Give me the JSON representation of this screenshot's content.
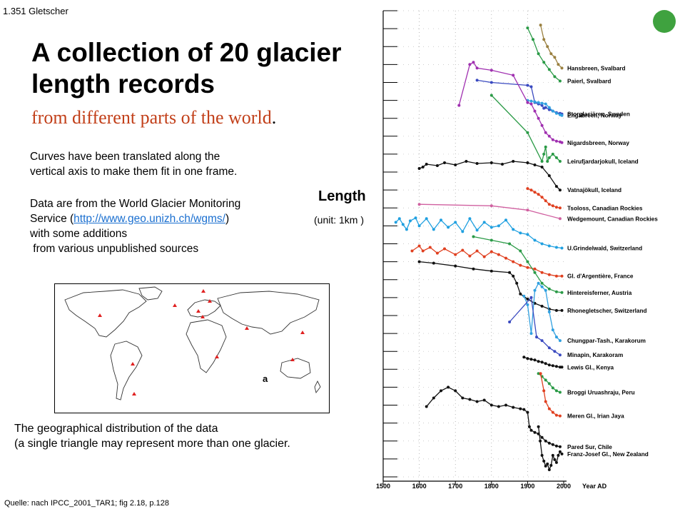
{
  "slide": {
    "id": "1.351  Gletscher",
    "title": "A collection of 20 glacier length records",
    "subtitle": "from different parts of the world",
    "subtitle_end": ".",
    "notes": {
      "line1": "Curves have been translated along the",
      "line2": "vertical axis to make them fit in one frame.",
      "line3": "Data are from the World Glacier Monitoring",
      "line4_pre": "Service (",
      "link": "http://www.geo.unizh.ch/wgms/",
      "line4_post": ")",
      "line5": "with some additions",
      "line6": " from various unpublished sources"
    },
    "length_label": "Length",
    "unit_label": "(unit: 1km )",
    "map_label": "a",
    "caption": {
      "line1": "The geographical distribution of the data",
      "line2": "(a single triangle may represent more than one glacier."
    },
    "source": "Quelle: nach  IPCC_2001_TAR1;  fig 2.18, p.128",
    "accent_color": "#3fa23f"
  },
  "chart_data": {
    "type": "line",
    "xlim": [
      1500,
      2000
    ],
    "xticks": [
      "1500",
      "1600",
      "1700",
      "1800",
      "1900",
      "2000"
    ],
    "xlabel": "Year AD",
    "series": [
      {
        "name": "Hansbreen, Svalbard",
        "color": "#9a8040",
        "x": [
          1936,
          1945,
          1955,
          1965,
          1975,
          1985,
          1995
        ],
        "y": [
          2.0,
          4.0,
          5.0,
          6.0,
          6.5,
          7.5,
          8.0
        ]
      },
      {
        "name": "Paierl, Svalbard",
        "color": "#2a9a46",
        "x": [
          1900,
          1915,
          1930,
          1945,
          1960,
          1975,
          1990
        ],
        "y": [
          2.4,
          4.0,
          6.0,
          7.2,
          8.2,
          9.2,
          9.8
        ]
      },
      {
        "name": "Storglaciären, Sweden",
        "color": "#3a4ac0",
        "x": [
          1760,
          1800,
          1900,
          1910,
          1920,
          1930,
          1940,
          1945,
          1950,
          1960,
          1970,
          1980,
          1990,
          1995
        ],
        "y": [
          9.7,
          10.0,
          10.4,
          10.6,
          12.8,
          13.0,
          13.2,
          13.6,
          13.5,
          13.8,
          14.0,
          14.2,
          14.3,
          14.4
        ]
      },
      {
        "name": "Engabreen, Norway",
        "color": "#30a0e0",
        "x": [
          1900,
          1910,
          1920,
          1930,
          1940,
          1950,
          1960,
          1970,
          1980,
          1990,
          1995
        ],
        "y": [
          12.5,
          12.6,
          12.7,
          12.8,
          12.9,
          13.0,
          13.5,
          14.0,
          14.3,
          14.5,
          14.6
        ]
      },
      {
        "name": "Nigardsbreen, Norway",
        "color": "#a030b0",
        "x": [
          1710,
          1740,
          1750,
          1760,
          1800,
          1860,
          1900,
          1910,
          1920,
          1930,
          1940,
          1950,
          1960,
          1970,
          1980,
          1990,
          1995
        ],
        "y": [
          13.2,
          7.5,
          7.2,
          8.0,
          8.3,
          9.0,
          12.8,
          13.0,
          14.0,
          15.0,
          16.0,
          17.0,
          17.5,
          18.0,
          18.2,
          18.3,
          18.4
        ]
      },
      {
        "name": "Leirufjardarjokull, Iceland",
        "color": "#2a9a46",
        "x": [
          1800,
          1900,
          1940,
          1945,
          1950,
          1955,
          1960,
          1970,
          1980,
          1990
        ],
        "y": [
          11.8,
          17.0,
          21.0,
          20.0,
          19.0,
          21.0,
          20.5,
          20.0,
          20.5,
          21.0
        ]
      },
      {
        "name": "Vatnajökull, Iceland",
        "color": "#111111",
        "x": [
          1600,
          1610,
          1620,
          1650,
          1670,
          1700,
          1730,
          1760,
          1800,
          1830,
          1860,
          1900,
          1920,
          1940,
          1960,
          1980,
          1990
        ],
        "y": [
          22.0,
          21.8,
          21.4,
          21.6,
          21.2,
          21.5,
          21.0,
          21.3,
          21.2,
          21.4,
          21.0,
          21.2,
          21.5,
          21.8,
          23.0,
          24.5,
          25.0
        ]
      },
      {
        "name": "Tsoloss, Canadian Rockies",
        "color": "#e04020",
        "x": [
          1900,
          1910,
          1920,
          1930,
          1940,
          1950,
          1960,
          1970,
          1980,
          1990
        ],
        "y": [
          24.8,
          25.0,
          25.3,
          25.6,
          26.0,
          26.5,
          27.0,
          27.2,
          27.4,
          27.5
        ]
      },
      {
        "name": "Wedgemount, Canadian Rockies",
        "color": "#d060a0",
        "x": [
          1600,
          1800,
          1900,
          1990
        ],
        "y": [
          27.0,
          27.2,
          27.8,
          29.0
        ]
      },
      {
        "name": "U.Grindelwald, Switzerland",
        "color": "#20a0e0",
        "x": [
          1535,
          1545,
          1555,
          1565,
          1575,
          1590,
          1600,
          1620,
          1640,
          1660,
          1680,
          1700,
          1720,
          1740,
          1760,
          1780,
          1800,
          1820,
          1840,
          1860,
          1880,
          1900,
          1920,
          1940,
          1960,
          1980,
          1995
        ],
        "y": [
          29.5,
          29.0,
          29.8,
          30.5,
          29.3,
          28.9,
          30.0,
          29.0,
          30.5,
          29.2,
          30.2,
          29.5,
          30.8,
          29.0,
          30.6,
          29.5,
          30.2,
          30.0,
          29.2,
          30.5,
          31.0,
          31.2,
          32.0,
          32.5,
          32.8,
          33.0,
          33.1
        ]
      },
      {
        "name": "Gl. d'Argentière, France",
        "color": "#e04020",
        "x": [
          1580,
          1600,
          1610,
          1630,
          1650,
          1670,
          1700,
          1720,
          1740,
          1760,
          1780,
          1800,
          1820,
          1840,
          1860,
          1880,
          1900,
          1920,
          1940,
          1960,
          1980,
          1995
        ],
        "y": [
          33.5,
          32.8,
          33.5,
          33.0,
          33.8,
          33.2,
          34.0,
          33.4,
          34.2,
          33.5,
          34.3,
          33.6,
          34.0,
          34.5,
          35.0,
          35.5,
          35.8,
          36.0,
          36.5,
          36.8,
          37.0,
          37.0
        ]
      },
      {
        "name": "Hintereisferner, Austria",
        "color": "#2a9a46",
        "x": [
          1750,
          1800,
          1850,
          1880,
          1900,
          1920,
          1940,
          1960,
          1980,
          1995
        ],
        "y": [
          31.5,
          32.0,
          32.5,
          33.5,
          35.0,
          36.5,
          38.0,
          38.8,
          39.2,
          39.3
        ]
      },
      {
        "name": "Rhonegletscher, Switzerland",
        "color": "#111111",
        "x": [
          1600,
          1640,
          1700,
          1750,
          1800,
          1850,
          1860,
          1870,
          1880,
          1900,
          1920,
          1940,
          1960,
          1980,
          1995
        ],
        "y": [
          35.0,
          35.2,
          35.6,
          36.0,
          36.3,
          36.5,
          37.0,
          38.0,
          39.5,
          40.2,
          40.8,
          41.2,
          41.6,
          41.8,
          41.8
        ]
      },
      {
        "name": "Chungpar-Tash., Karakorum",
        "color": "#30a0e0",
        "x": [
          1890,
          1900,
          1910,
          1920,
          1930,
          1940,
          1950,
          1960,
          1970,
          1980,
          1990
        ],
        "y": [
          39.8,
          41.0,
          45.0,
          39.0,
          38.0,
          38.5,
          39.0,
          42.0,
          44.5,
          45.5,
          46.0
        ]
      },
      {
        "name": "Minapin, Karakoram",
        "color": "#3a4ac0",
        "x": [
          1850,
          1910,
          1925,
          1940,
          1960,
          1975,
          1990
        ],
        "y": [
          43.4,
          40.0,
          45.5,
          46.0,
          47.0,
          47.5,
          48.0
        ]
      },
      {
        "name": "Lewis Gl., Kenya",
        "color": "#111111",
        "x": [
          1890,
          1900,
          1910,
          1920,
          1930,
          1940,
          1950,
          1960,
          1970,
          1980,
          1990,
          1995
        ],
        "y": [
          48.3,
          48.5,
          48.6,
          48.7,
          48.9,
          49.0,
          49.2,
          49.4,
          49.5,
          49.6,
          49.7,
          49.7
        ]
      },
      {
        "name": "Broggi Uruashraju, Peru",
        "color": "#2a9a46",
        "x": [
          1930,
          1940,
          1950,
          1960,
          1970,
          1980,
          1990
        ],
        "y": [
          50.6,
          51.0,
          51.5,
          52.0,
          52.6,
          53.0,
          53.2
        ]
      },
      {
        "name": "Meren Gl., Irian Jaya",
        "color": "#e04020",
        "x": [
          1936,
          1945,
          1950,
          1960,
          1970,
          1980,
          1990
        ],
        "y": [
          50.6,
          53.0,
          54.5,
          55.5,
          56.0,
          56.4,
          56.5
        ]
      },
      {
        "name": "Pared Sur, Chile",
        "color": "#111111",
        "x": [
          1620,
          1640,
          1660,
          1680,
          1700,
          1720,
          1740,
          1760,
          1780,
          1800,
          1820,
          1840,
          1860,
          1880,
          1890,
          1900,
          1905,
          1910,
          1920,
          1930,
          1940,
          1950,
          1960,
          1970,
          1980,
          1990
        ],
        "y": [
          55.2,
          54.0,
          53.0,
          52.5,
          53.0,
          54.0,
          54.2,
          54.5,
          54.3,
          55.0,
          55.2,
          55.0,
          55.3,
          55.5,
          55.6,
          56.0,
          58.0,
          58.5,
          58.8,
          59.0,
          59.5,
          60.0,
          60.3,
          60.5,
          60.7,
          60.8
        ]
      },
      {
        "name": "Franz-Josef Gl., New Zealand",
        "color": "#111111",
        "x": [
          1930,
          1935,
          1940,
          1945,
          1950,
          1955,
          1960,
          1965,
          1970,
          1975,
          1980,
          1985,
          1990,
          1995
        ],
        "y": [
          58.0,
          60.0,
          62.0,
          62.8,
          63.5,
          63.2,
          64.0,
          63.4,
          62.0,
          62.6,
          63.0,
          62.0,
          61.5,
          61.8
        ]
      }
    ]
  }
}
